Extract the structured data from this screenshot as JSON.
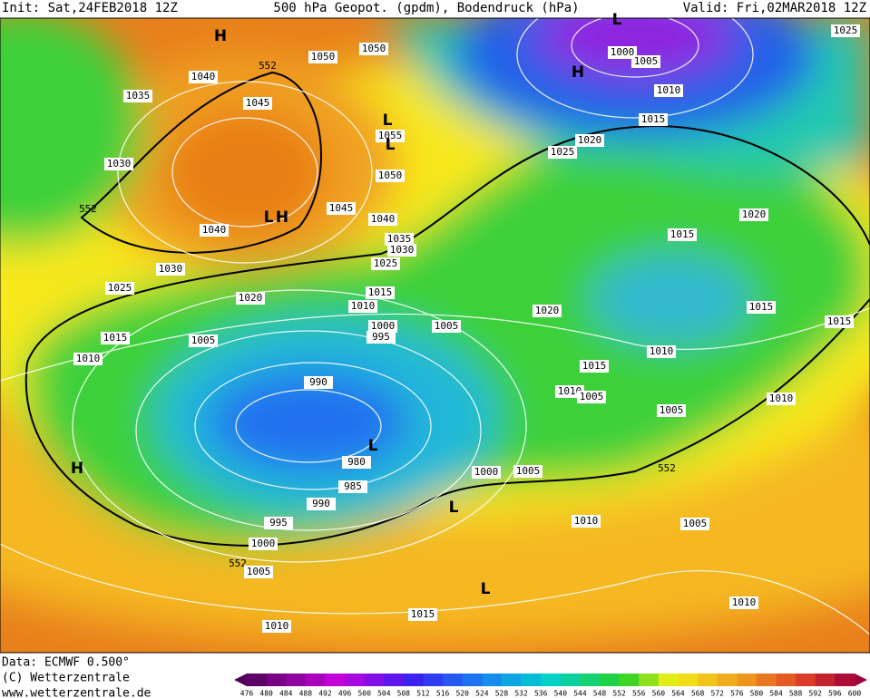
{
  "header": {
    "init": "Init: Sat,24FEB2018 12Z",
    "title": "500 hPa Geopot. (gpdm), Bodendruck (hPa)",
    "valid": "Valid: Fri,02MAR2018 12Z"
  },
  "isobar_labels": [
    "1025",
    "1000",
    "1005",
    "1010",
    "1015",
    "1020",
    "1025",
    "1050",
    "1050",
    "552",
    "1040",
    "1035",
    "1045",
    "1055",
    "1050",
    "1030",
    "1045",
    "1040",
    "1040",
    "1035",
    "1030",
    "552",
    "1025",
    "1030",
    "1025",
    "1020",
    "1015",
    "1015",
    "1020",
    "1010",
    "1020",
    "1015",
    "1015",
    "1000",
    "1005",
    "995",
    "1015",
    "1005",
    "1010",
    "1010",
    "1015",
    "990",
    "1010",
    "1005",
    "1010",
    "1005",
    "980",
    "1000",
    "1005",
    "552",
    "985",
    "990",
    "995",
    "1010",
    "1005",
    "1000",
    "552",
    "1005",
    "1010",
    "1015",
    "1010"
  ],
  "pressure_centers": [
    "L",
    "H",
    "H",
    "L",
    "L",
    "L",
    "H",
    "L",
    "H",
    "L",
    "L"
  ],
  "colorbar": [
    476,
    480,
    484,
    488,
    492,
    496,
    500,
    504,
    508,
    512,
    516,
    520,
    524,
    528,
    532,
    536,
    540,
    544,
    548,
    552,
    556,
    560,
    564,
    568,
    572,
    576,
    580,
    584,
    588,
    592,
    596,
    600
  ],
  "footer": {
    "data": "Data: ECMWF   0.500°",
    "copyright": "(C) Wetterzentrale",
    "url": "www.wetterzentrale.de"
  }
}
